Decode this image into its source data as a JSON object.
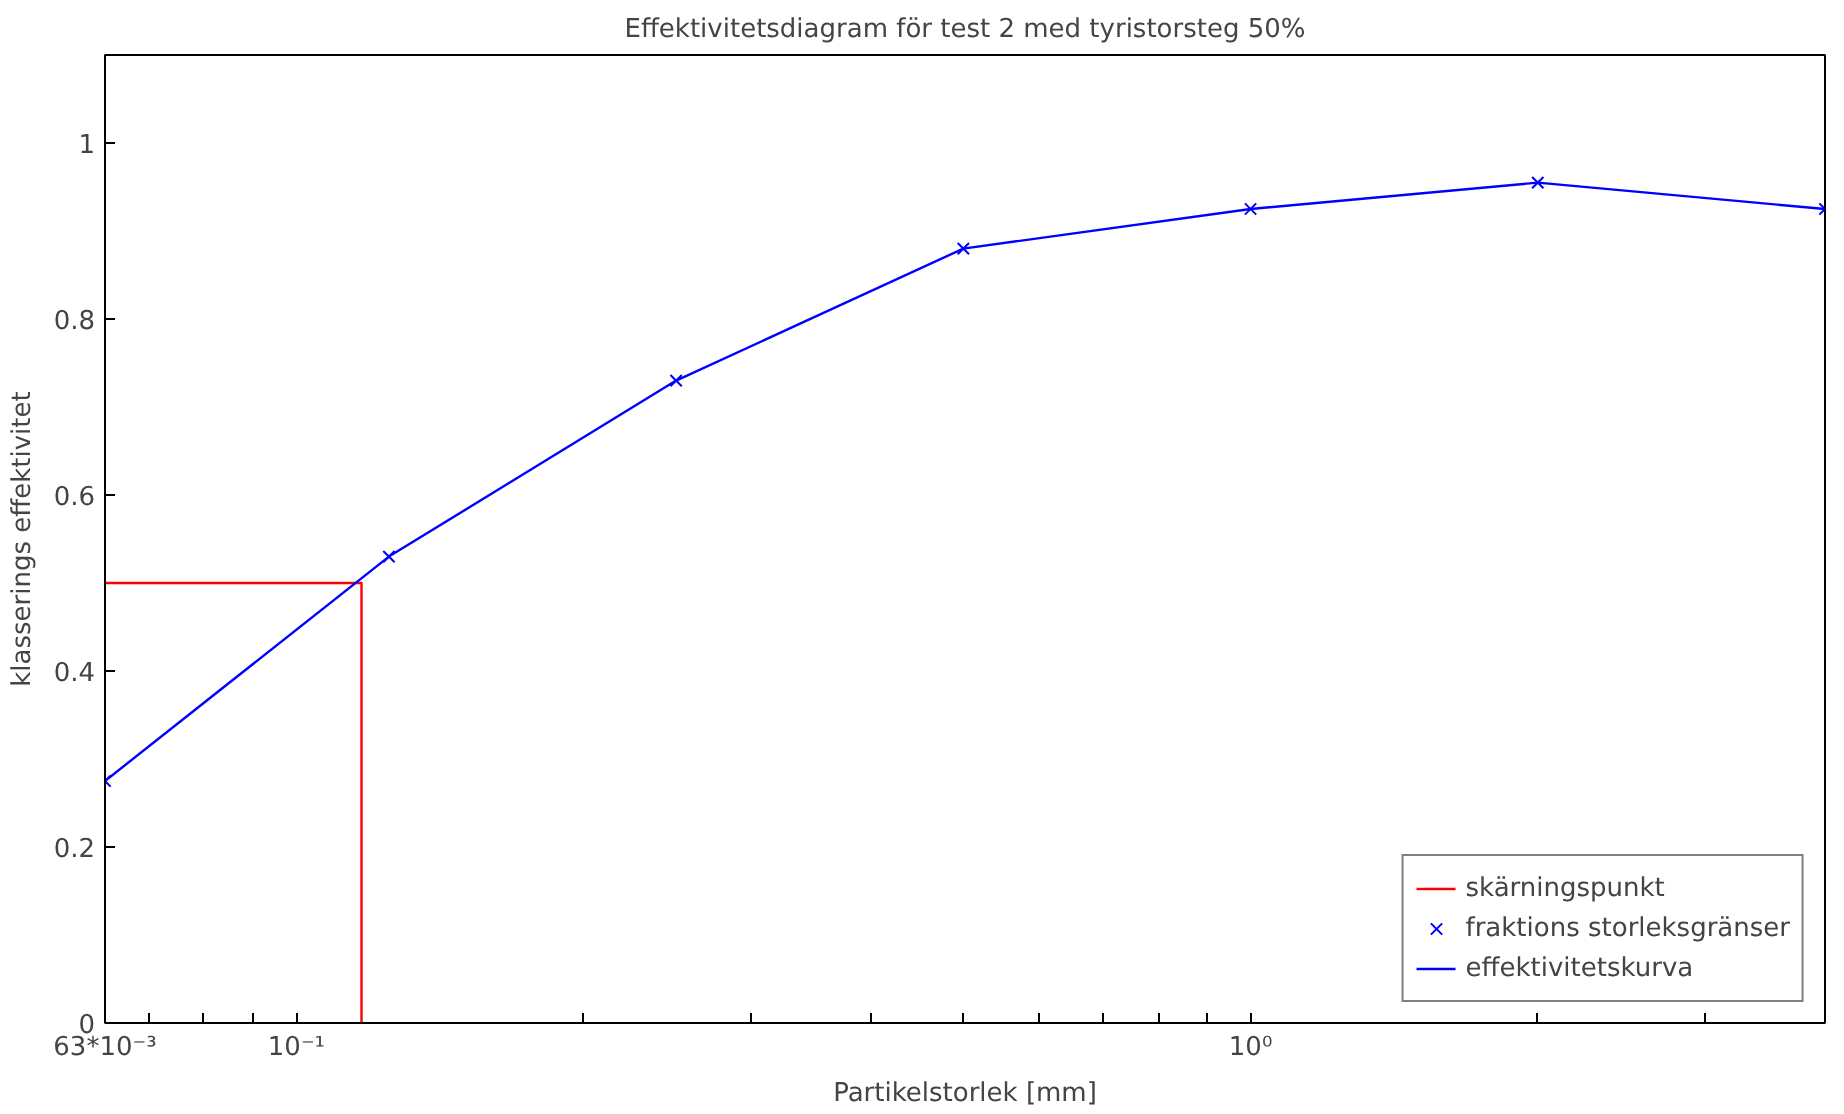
{
  "chart_data": {
    "type": "line",
    "title": "Effektivitetsdiagram för test 2 med tyristorsteg 50%",
    "xlabel": "Partikelstorlek [mm]",
    "ylabel": "klasserings effektivitet",
    "log": "x",
    "grid": false,
    "legend": "bottom right",
    "xlim": [
      0.063,
      4
    ],
    "ylim": [
      0,
      1.1
    ],
    "xticks": [
      {
        "value": 0.063,
        "label": "63*10⁻³"
      },
      {
        "value": 0.07,
        "label": null
      },
      {
        "value": 0.08,
        "label": null
      },
      {
        "value": 0.09,
        "label": null
      },
      {
        "value": 0.1,
        "label": "10⁻¹"
      },
      {
        "value": 0.2,
        "label": null
      },
      {
        "value": 0.3,
        "label": null
      },
      {
        "value": 0.4,
        "label": null
      },
      {
        "value": 0.5,
        "label": null
      },
      {
        "value": 0.6,
        "label": null
      },
      {
        "value": 0.7,
        "label": null
      },
      {
        "value": 0.8,
        "label": null
      },
      {
        "value": 0.9,
        "label": null
      },
      {
        "value": 1,
        "label": "10⁰"
      },
      {
        "value": 2,
        "label": null
      },
      {
        "value": 3,
        "label": null
      },
      {
        "value": 4,
        "label": null
      }
    ],
    "yticks": [
      0,
      0.2,
      0.4,
      0.6,
      0.8,
      1
    ],
    "series": [
      {
        "name": "skärningspunkt",
        "color": "#ff0000",
        "marker": "none",
        "x": [
          0.063,
          0.117,
          0.117
        ],
        "values": [
          0.5,
          0.5,
          0
        ]
      },
      {
        "name": "fraktions storleksgränser",
        "type": "scatter",
        "color": "#0000ff",
        "marker": "cross",
        "x": [
          0.063,
          0.125,
          0.25,
          0.5,
          1,
          2,
          4
        ],
        "values": [
          0.275,
          0.53,
          0.73,
          0.88,
          0.925,
          0.955,
          0.925
        ]
      },
      {
        "name": "effektivitetskurva",
        "color": "#0000ff",
        "marker": "none",
        "x": [
          0.063,
          0.125,
          0.25,
          0.5,
          1,
          2,
          4
        ],
        "values": [
          0.275,
          0.53,
          0.73,
          0.88,
          0.925,
          0.955,
          0.925
        ]
      }
    ]
  }
}
